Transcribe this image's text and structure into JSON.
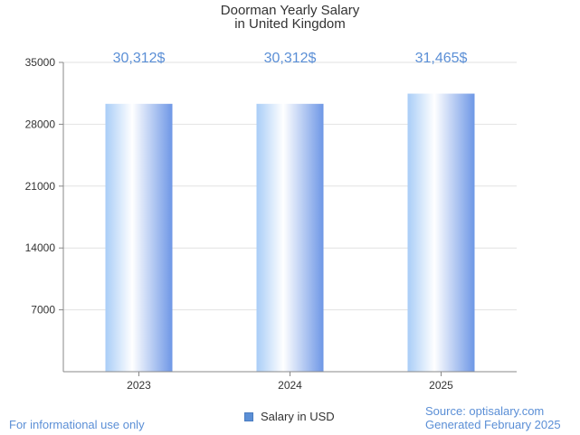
{
  "chart_data": {
    "type": "bar",
    "title": [
      "Doorman Yearly Salary",
      "in United Kingdom"
    ],
    "categories": [
      "2023",
      "2024",
      "2025"
    ],
    "values": [
      30312,
      30312,
      31465
    ],
    "value_labels": [
      "30,312$",
      "30,312$",
      "31,465$"
    ],
    "series": [
      {
        "name": "Salary in USD",
        "values": [
          30312,
          30312,
          31465
        ]
      }
    ],
    "y_ticks": [
      "7000",
      "14000",
      "21000",
      "28000",
      "35000"
    ],
    "ylim": [
      0,
      35000
    ],
    "grid": true,
    "legend": "bottom-center",
    "bar_color": "#5b8fd6",
    "label_color": "#5b8fd6"
  },
  "footer": {
    "disclaimer": "For informational use only",
    "source": "Source: optisalary.com",
    "generated": "Generated February 2025"
  }
}
